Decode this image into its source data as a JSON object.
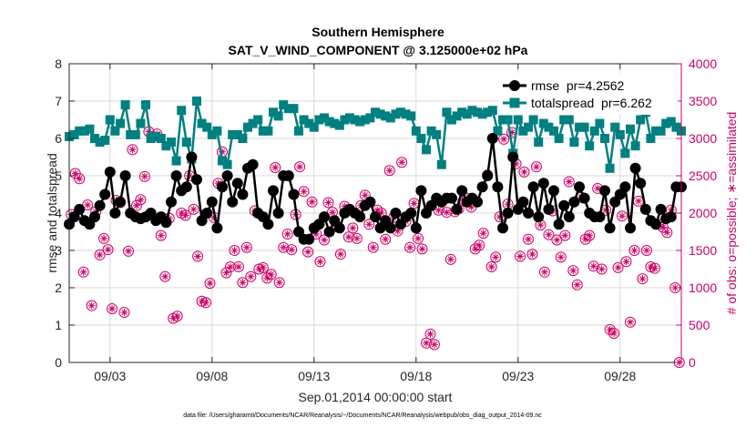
{
  "colors": {
    "rmse": "#000000",
    "spread": "#008080",
    "obs": "#cc0066",
    "axis": "#262626",
    "grid": "#d9d9d9"
  },
  "chart_data": {
    "type": "line",
    "title": "Southern Hemisphere",
    "subtitle": "SAT_V_WIND_COMPONENT @ 3.125000e+02 hPa",
    "xlabel": "Sep.01,2014 00:00:00 start",
    "ylabel": "rmse and totalspread",
    "y2label": "# of obs: o=possible; ∗=assimilated",
    "footnote": "data file: /Users/gharamti/Documents/NCAR/Reanalysis/~/Documents/NCAR/Reanalysis/webpub/obs_diag_output_2014-09.nc",
    "xlim": [
      1.0,
      31.0
    ],
    "ylim": [
      0,
      8
    ],
    "y2lim": [
      0,
      4000
    ],
    "xticks": [
      3,
      8,
      13,
      18,
      23,
      28
    ],
    "xtick_labels": [
      "09/03",
      "09/08",
      "09/13",
      "09/18",
      "09/23",
      "09/28"
    ],
    "yticks": [
      0,
      1,
      2,
      3,
      4,
      5,
      6,
      7,
      8
    ],
    "y2ticks": [
      0,
      500,
      1000,
      1500,
      2000,
      2500,
      3000,
      3500,
      4000
    ],
    "legend": [
      {
        "name": "rmse  pr=4.2562",
        "series": "rmse"
      },
      {
        "name": "totalspread  pr=6.262",
        "series": "spread"
      }
    ],
    "legend_position": "top-right",
    "x": [
      1.0,
      1.25,
      1.5,
      1.75,
      2.0,
      2.25,
      2.5,
      2.75,
      3.0,
      3.25,
      3.5,
      3.75,
      4.0,
      4.25,
      4.5,
      4.75,
      5.0,
      5.25,
      5.5,
      5.75,
      6.0,
      6.25,
      6.5,
      6.75,
      7.0,
      7.25,
      7.5,
      7.75,
      8.0,
      8.25,
      8.5,
      8.75,
      9.0,
      9.25,
      9.5,
      9.75,
      10.0,
      10.25,
      10.5,
      10.75,
      11.0,
      11.25,
      11.5,
      11.75,
      12.0,
      12.25,
      12.5,
      12.75,
      13.0,
      13.25,
      13.5,
      13.75,
      14.0,
      14.25,
      14.5,
      14.75,
      15.0,
      15.25,
      15.5,
      15.75,
      16.0,
      16.25,
      16.5,
      16.75,
      17.0,
      17.25,
      17.5,
      17.75,
      18.0,
      18.25,
      18.5,
      18.75,
      19.0,
      19.25,
      19.5,
      19.75,
      20.0,
      20.25,
      20.5,
      20.75,
      21.0,
      21.25,
      21.5,
      21.75,
      22.0,
      22.25,
      22.5,
      22.75,
      23.0,
      23.25,
      23.5,
      23.75,
      24.0,
      24.25,
      24.5,
      24.75,
      25.0,
      25.25,
      25.5,
      25.75,
      26.0,
      26.25,
      26.5,
      26.75,
      27.0,
      27.25,
      27.5,
      27.75,
      28.0,
      28.25,
      28.5,
      28.75,
      29.0,
      29.25,
      29.5,
      29.75,
      30.0,
      30.25,
      30.5,
      30.75,
      31.0
    ],
    "series": [
      {
        "name": "rmse",
        "values": [
          3.7,
          3.9,
          4.1,
          3.8,
          3.7,
          3.9,
          4.2,
          4.5,
          5.1,
          4.0,
          4.3,
          5.0,
          4.0,
          3.9,
          3.85,
          3.9,
          4.0,
          3.8,
          3.9,
          3.75,
          4.3,
          5.0,
          4.6,
          4.7,
          5.5,
          4.9,
          3.8,
          4.0,
          4.3,
          3.6,
          4.7,
          5.0,
          4.3,
          4.8,
          4.5,
          5.2,
          5.3,
          4.0,
          3.9,
          3.7,
          4.6,
          4.0,
          5.0,
          5.0,
          4.5,
          3.5,
          3.3,
          3.3,
          3.6,
          3.7,
          3.9,
          3.5,
          3.8,
          3.6,
          4.0,
          4.1,
          4.0,
          3.9,
          4.2,
          4.3,
          3.9,
          3.6,
          3.8,
          3.6,
          4.0,
          3.7,
          3.9,
          4.0,
          3.6,
          4.6,
          4.0,
          4.2,
          4.4,
          4.3,
          4.4,
          4.4,
          4.1,
          4.6,
          4.3,
          4.4,
          4.3,
          4.7,
          5.0,
          6.0,
          4.7,
          3.6,
          4.0,
          5.5,
          4.1,
          4.3,
          4.0,
          4.7,
          3.9,
          4.8,
          4.1,
          4.6,
          3.7,
          4.2,
          3.9,
          4.3,
          4.7,
          4.4,
          4.0,
          3.9,
          3.9,
          4.6,
          3.6,
          4.3,
          4.5,
          4.7,
          3.6,
          5.2,
          4.8,
          4.1,
          3.8,
          3.7,
          4.1,
          3.85,
          3.9,
          4.7,
          4.7
        ]
      },
      {
        "name": "totalspread",
        "values": [
          6.05,
          6.1,
          6.2,
          6.2,
          6.25,
          6.0,
          5.9,
          5.95,
          6.5,
          6.2,
          6.4,
          6.9,
          6.1,
          6.1,
          6.4,
          6.9,
          6.0,
          6.05,
          6.0,
          5.8,
          5.9,
          5.4,
          6.75,
          5.9,
          5.45,
          7.0,
          6.4,
          6.3,
          6.1,
          6.2,
          5.4,
          5.3,
          6.1,
          6.1,
          6.0,
          6.3,
          6.4,
          6.5,
          6.2,
          6.2,
          6.7,
          6.6,
          6.9,
          6.8,
          6.8,
          6.2,
          6.5,
          6.4,
          6.3,
          6.5,
          6.55,
          6.45,
          6.4,
          6.35,
          6.5,
          6.55,
          6.5,
          6.45,
          6.5,
          6.55,
          6.7,
          6.65,
          6.6,
          6.55,
          6.65,
          6.7,
          6.65,
          6.6,
          6.2,
          6.0,
          5.7,
          6.2,
          6.1,
          5.3,
          6.7,
          6.5,
          6.6,
          6.7,
          6.65,
          6.75,
          6.7,
          6.65,
          6.7,
          6.75,
          6.2,
          6.5,
          6.5,
          5.6,
          6.5,
          6.2,
          6.3,
          6.5,
          5.9,
          6.4,
          6.3,
          6.2,
          6.0,
          6.5,
          6.5,
          5.9,
          6.3,
          6.3,
          5.8,
          6.2,
          6.4,
          6.0,
          5.2,
          6.3,
          6.1,
          5.6,
          6.25,
          5.8,
          6.5,
          6.7,
          6.0,
          6.2,
          6.2,
          6.4,
          6.45,
          6.3,
          6.2
        ]
      }
    ],
    "obs_points": [
      [
        1.1,
        1980
      ],
      [
        1.3,
        2530
      ],
      [
        1.5,
        2460
      ],
      [
        1.7,
        1210
      ],
      [
        1.9,
        2110
      ],
      [
        2.1,
        760
      ],
      [
        2.3,
        2020
      ],
      [
        2.5,
        1440
      ],
      [
        2.7,
        1660
      ],
      [
        2.9,
        1510
      ],
      [
        3.1,
        720
      ],
      [
        3.3,
        2170
      ],
      [
        3.5,
        2140
      ],
      [
        3.7,
        670
      ],
      [
        3.9,
        1490
      ],
      [
        4.1,
        2850
      ],
      [
        4.3,
        2100
      ],
      [
        4.5,
        2180
      ],
      [
        4.7,
        2490
      ],
      [
        4.9,
        3090
      ],
      [
        5.1,
        3020
      ],
      [
        5.3,
        3060
      ],
      [
        5.5,
        1700
      ],
      [
        5.7,
        1150
      ],
      [
        5.9,
        1930
      ],
      [
        6.1,
        590
      ],
      [
        6.3,
        620
      ],
      [
        6.5,
        2000
      ],
      [
        6.7,
        1970
      ],
      [
        6.9,
        2500
      ],
      [
        7.1,
        2050
      ],
      [
        7.3,
        1420
      ],
      [
        7.5,
        820
      ],
      [
        7.7,
        800
      ],
      [
        7.9,
        1060
      ],
      [
        8.1,
        1940
      ],
      [
        8.3,
        2400
      ],
      [
        8.5,
        2820
      ],
      [
        8.7,
        1200
      ],
      [
        8.9,
        1280
      ],
      [
        9.1,
        1500
      ],
      [
        9.3,
        1280
      ],
      [
        9.5,
        1070
      ],
      [
        9.7,
        1540
      ],
      [
        9.9,
        1150
      ],
      [
        10.1,
        2030
      ],
      [
        10.3,
        1250
      ],
      [
        10.5,
        1270
      ],
      [
        10.7,
        1130
      ],
      [
        10.9,
        1180
      ],
      [
        11.1,
        2610
      ],
      [
        11.3,
        1070
      ],
      [
        11.5,
        1540
      ],
      [
        11.7,
        1720
      ],
      [
        11.9,
        1510
      ],
      [
        12.1,
        1980
      ],
      [
        12.3,
        2620
      ],
      [
        12.5,
        2290
      ],
      [
        12.7,
        1480
      ],
      [
        12.9,
        2150
      ],
      [
        13.1,
        1720
      ],
      [
        13.3,
        1350
      ],
      [
        13.5,
        1640
      ],
      [
        13.7,
        2140
      ],
      [
        13.9,
        2010
      ],
      [
        14.1,
        1820
      ],
      [
        14.3,
        1450
      ],
      [
        14.5,
        2090
      ],
      [
        14.7,
        1680
      ],
      [
        14.9,
        1800
      ],
      [
        15.1,
        1660
      ],
      [
        15.3,
        2100
      ],
      [
        15.5,
        2240
      ],
      [
        15.7,
        1850
      ],
      [
        15.9,
        1540
      ],
      [
        16.1,
        2040
      ],
      [
        16.3,
        2000
      ],
      [
        16.5,
        1650
      ],
      [
        16.7,
        2570
      ],
      [
        16.9,
        1940
      ],
      [
        17.1,
        1760
      ],
      [
        17.3,
        2680
      ],
      [
        17.5,
        1890
      ],
      [
        17.7,
        1540
      ],
      [
        17.9,
        2130
      ],
      [
        18.1,
        1660
      ],
      [
        18.3,
        1520
      ],
      [
        18.5,
        260
      ],
      [
        18.7,
        380
      ],
      [
        18.9,
        240
      ],
      [
        19.1,
        2040
      ],
      [
        19.3,
        2160
      ],
      [
        19.5,
        2010
      ],
      [
        19.7,
        1380
      ],
      [
        19.9,
        2020
      ],
      [
        20.1,
        2060
      ],
      [
        20.3,
        2160
      ],
      [
        20.5,
        2200
      ],
      [
        20.7,
        2080
      ],
      [
        20.9,
        1520
      ],
      [
        21.1,
        1570
      ],
      [
        21.3,
        1730
      ],
      [
        21.5,
        2510
      ],
      [
        21.7,
        1280
      ],
      [
        21.9,
        1410
      ],
      [
        22.1,
        1950
      ],
      [
        22.3,
        2990
      ],
      [
        22.5,
        2120
      ],
      [
        22.7,
        3080
      ],
      [
        22.9,
        2660
      ],
      [
        23.1,
        1420
      ],
      [
        23.3,
        2550
      ],
      [
        23.5,
        1650
      ],
      [
        23.7,
        1450
      ],
      [
        23.9,
        2620
      ],
      [
        24.1,
        1840
      ],
      [
        24.3,
        1210
      ],
      [
        24.5,
        1710
      ],
      [
        24.7,
        2030
      ],
      [
        24.9,
        1640
      ],
      [
        25.1,
        1410
      ],
      [
        25.3,
        1700
      ],
      [
        25.5,
        2420
      ],
      [
        25.7,
        1230
      ],
      [
        25.9,
        1040
      ],
      [
        26.1,
        2210
      ],
      [
        26.3,
        1650
      ],
      [
        26.5,
        1700
      ],
      [
        26.7,
        1290
      ],
      [
        26.9,
        2330
      ],
      [
        27.1,
        1250
      ],
      [
        27.3,
        2040
      ],
      [
        27.5,
        440
      ],
      [
        27.7,
        390
      ],
      [
        27.9,
        1270
      ],
      [
        28.1,
        1960
      ],
      [
        28.3,
        1350
      ],
      [
        28.5,
        540
      ],
      [
        28.7,
        1500
      ],
      [
        28.9,
        2160
      ],
      [
        29.1,
        1120
      ],
      [
        29.3,
        1500
      ],
      [
        29.5,
        1280
      ],
      [
        29.7,
        1260
      ],
      [
        29.9,
        1850
      ],
      [
        30.1,
        1810
      ],
      [
        30.3,
        1740
      ],
      [
        30.5,
        2040
      ],
      [
        30.7,
        1000
      ],
      [
        30.9,
        0
      ]
    ]
  }
}
